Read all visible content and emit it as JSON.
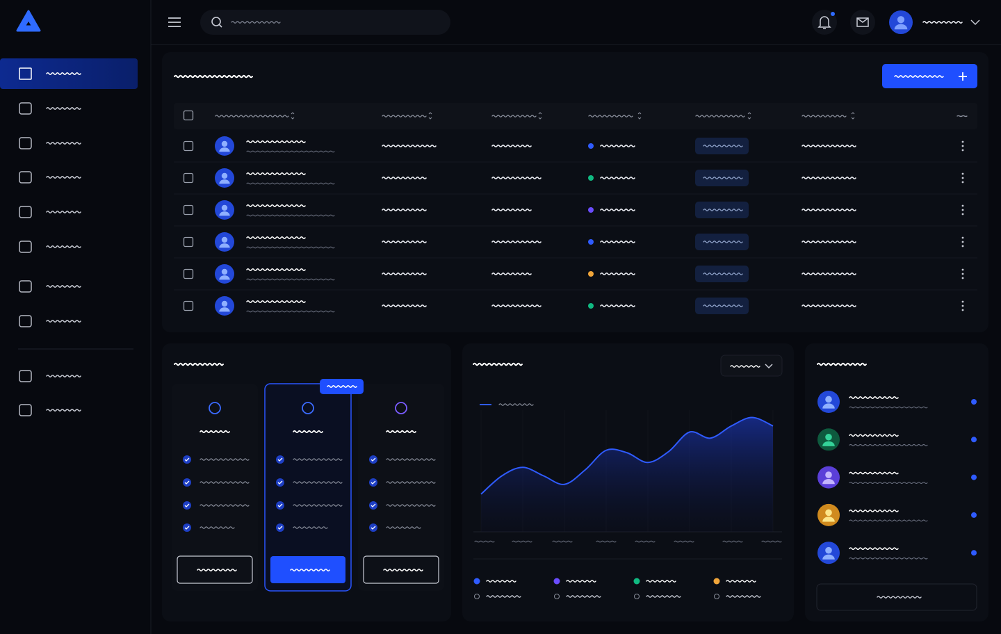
{
  "area_chart": {
    "type": "area",
    "values": [
      31,
      46,
      53,
      46,
      39,
      51,
      67,
      65,
      57,
      66,
      82,
      77,
      87,
      94,
      87
    ],
    "ylim": [
      0,
      100
    ],
    "color": "#2f5bff"
  }
}
